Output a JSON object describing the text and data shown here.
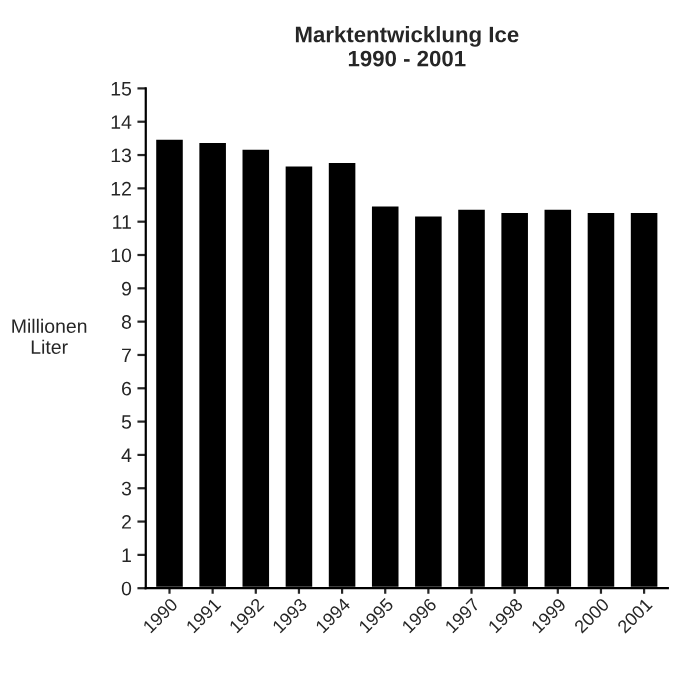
{
  "chart_data": {
    "type": "bar",
    "title": "Marktentwicklung Ice\n1990 - 2001",
    "ylabel": "Millionen\nLiter",
    "categories": [
      "1990",
      "1991",
      "1992",
      "1993",
      "1994",
      "1995",
      "1996",
      "1997",
      "1998",
      "1999",
      "2000",
      "2001"
    ],
    "values": [
      13.5,
      13.4,
      13.2,
      12.7,
      12.8,
      11.5,
      11.2,
      11.4,
      11.3,
      11.4,
      11.3,
      11.3
    ],
    "color": "#000000",
    "ylim": [
      0,
      15
    ],
    "yticks": [
      0,
      1,
      2,
      3,
      4,
      5,
      6,
      7,
      8,
      9,
      10,
      11,
      12,
      13,
      14,
      15
    ],
    "grid": false,
    "legend": false
  }
}
